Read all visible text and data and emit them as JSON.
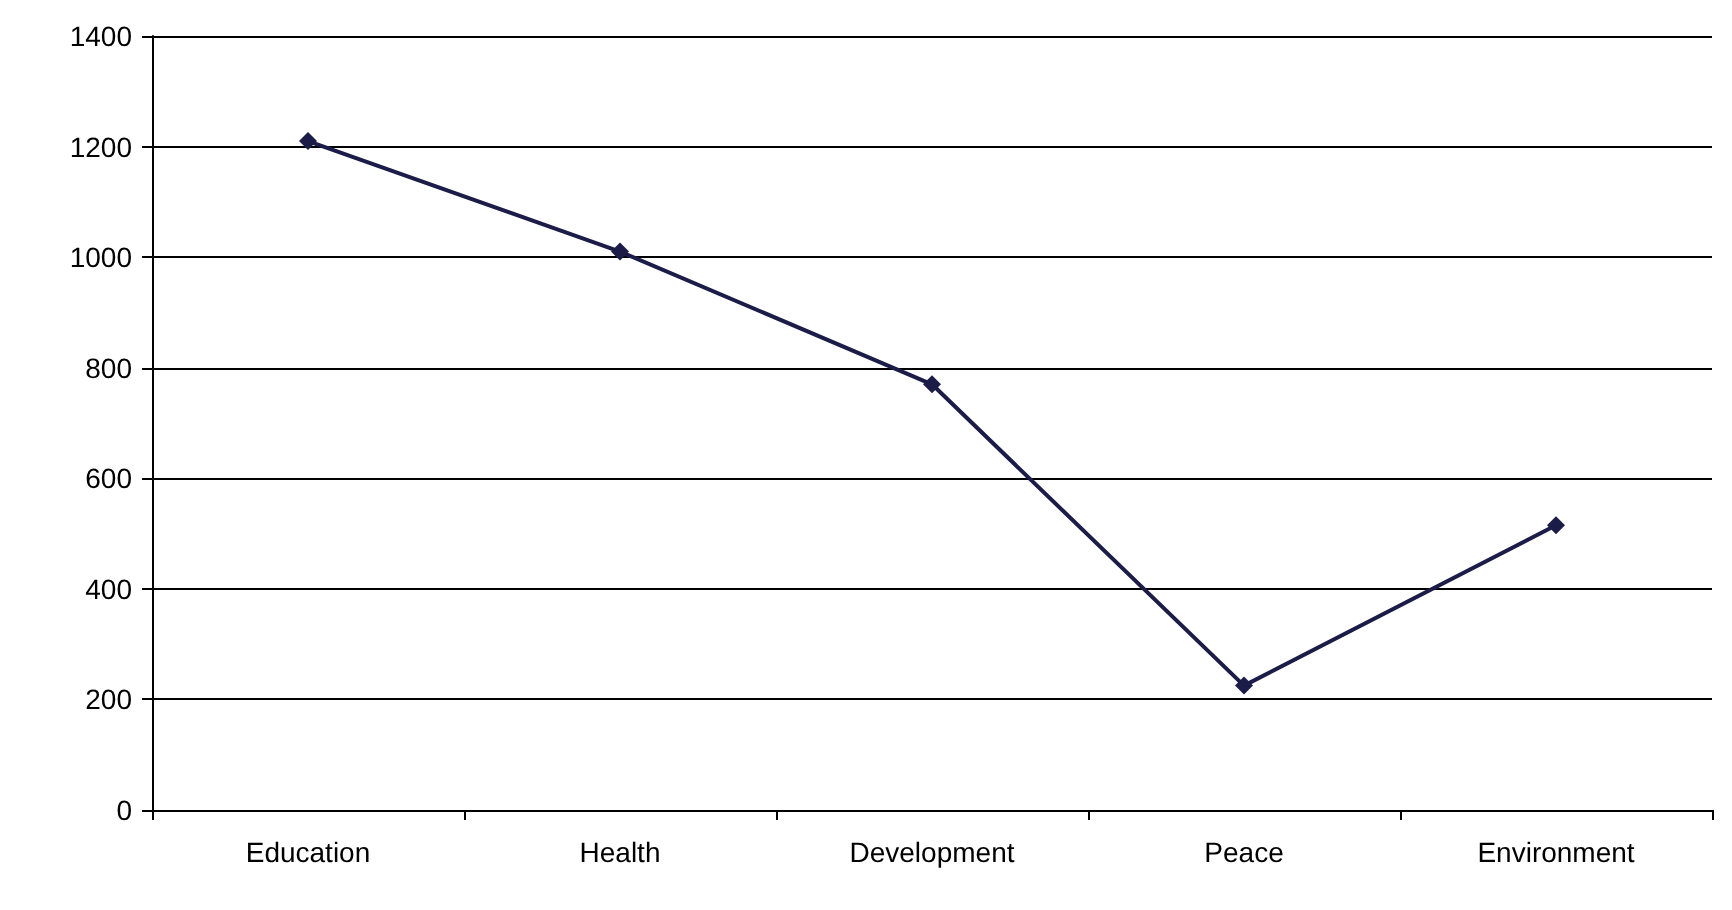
{
  "chart_data": {
    "type": "line",
    "categories": [
      "Education",
      "Health",
      "Development",
      "Peace",
      "Environment"
    ],
    "series": [
      {
        "color": "#1c1c48",
        "values": [
          1210,
          1010,
          770,
          225,
          515
        ]
      }
    ],
    "ylim": [
      0,
      1400
    ],
    "yticks": [
      0,
      200,
      400,
      600,
      800,
      1000,
      1200,
      1400
    ],
    "grid": "y",
    "marker": "diamond",
    "line_style": "solid"
  }
}
